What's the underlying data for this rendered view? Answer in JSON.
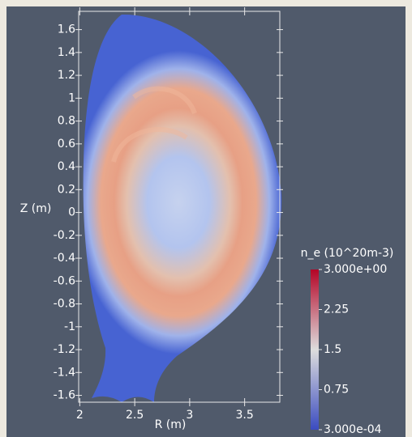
{
  "chart_data": {
    "type": "heatmap",
    "x_label": "R (m)",
    "y_label": "Z (m)",
    "xlim": [
      1.99,
      3.82
    ],
    "xticks": [
      2,
      2.5,
      3,
      3.5
    ],
    "ylim": [
      -1.66,
      1.76
    ],
    "yticks": [
      1.6,
      1.4,
      1.2,
      1,
      0.8,
      0.6,
      0.4,
      0.2,
      0,
      -0.2,
      -0.4,
      -0.6,
      -0.8,
      -1,
      -1.2,
      -1.4,
      -1.6
    ],
    "colorbar": {
      "label": "n_e (10^20m-3)",
      "clim": [
        0.0003,
        3
      ],
      "ticks": [
        {
          "value": 3,
          "label": "3.000e+00"
        },
        2.25,
        1.5,
        0.75,
        {
          "value": 0.0003,
          "label": "3.000e-04"
        }
      ],
      "colors": [
        "#3b4cc0",
        "#dddddd",
        "#b40426"
      ]
    }
  }
}
